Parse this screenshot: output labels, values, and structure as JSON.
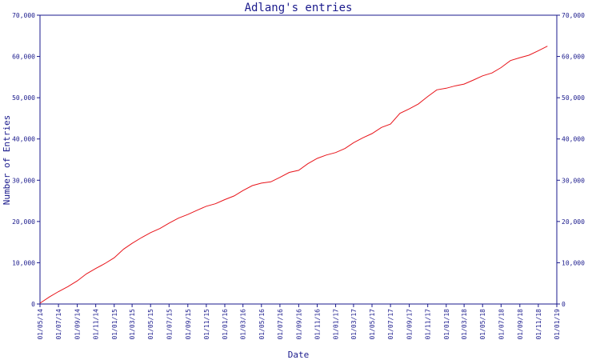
{
  "chart_data": {
    "type": "line",
    "title": "Adlang's entries",
    "xlabel": "Date",
    "ylabel": "Number of Entries",
    "ylim": [
      0,
      70000
    ],
    "y_ticks": [
      "0",
      "10,000",
      "20,000",
      "30,000",
      "40,000",
      "50,000",
      "60,000",
      "70,000"
    ],
    "x_ticks": [
      "01/05/14",
      "01/07/14",
      "01/09/14",
      "01/11/14",
      "01/01/15",
      "01/03/15",
      "01/05/15",
      "01/07/15",
      "01/09/15",
      "01/11/15",
      "01/01/16",
      "01/03/16",
      "01/05/16",
      "01/07/16",
      "01/09/16",
      "01/11/16",
      "01/01/17",
      "01/03/17",
      "01/05/17",
      "01/07/17",
      "01/09/17",
      "01/11/17",
      "01/01/18",
      "01/03/18",
      "01/05/18",
      "01/07/18",
      "01/09/18",
      "01/11/18",
      "01/01/19"
    ],
    "line_color": "#e8141a",
    "axis_color": "#1a1a8c",
    "grid": false,
    "series": [
      {
        "x": [
          "01/05/14",
          "01/06/14",
          "01/07/14",
          "01/08/14",
          "01/09/14",
          "01/10/14",
          "01/11/14",
          "01/12/14",
          "01/01/15",
          "01/02/15",
          "01/03/15",
          "01/04/15",
          "01/05/15",
          "01/06/15",
          "01/07/15",
          "01/08/15",
          "01/09/15",
          "01/10/15",
          "01/11/15",
          "01/12/15",
          "01/01/16",
          "01/02/16",
          "01/03/16",
          "01/04/16",
          "01/05/16",
          "01/06/16",
          "01/07/16",
          "01/08/16",
          "01/09/16",
          "01/10/16",
          "01/11/16",
          "01/12/16",
          "01/01/17",
          "01/02/17",
          "01/03/17",
          "01/04/17",
          "01/05/17",
          "01/06/17",
          "01/07/17",
          "01/08/17",
          "01/09/17",
          "01/10/17",
          "01/11/17",
          "01/12/17",
          "01/01/18",
          "01/02/18",
          "01/03/18",
          "01/04/18",
          "01/05/18",
          "01/06/18",
          "01/07/18",
          "01/08/18",
          "01/09/18",
          "01/10/18",
          "01/11/18",
          "01/12/18"
        ],
        "y": [
          200,
          1700,
          3000,
          4200,
          5600,
          7300,
          8600,
          9800,
          11200,
          13300,
          14700,
          16100,
          17300,
          18300,
          19600,
          20800,
          21700,
          22700,
          23700,
          24300,
          25300,
          26200,
          27500,
          28700,
          29300,
          29600,
          30700,
          31900,
          32400,
          34000,
          35300,
          36100,
          36700,
          37700,
          39100,
          40300,
          41300,
          42800,
          43600,
          46200,
          47300,
          48500,
          50300,
          51900,
          52300,
          52900,
          53300,
          54300,
          55300,
          56000,
          57300,
          59000,
          59700,
          60300,
          61400,
          62500
        ]
      }
    ]
  }
}
